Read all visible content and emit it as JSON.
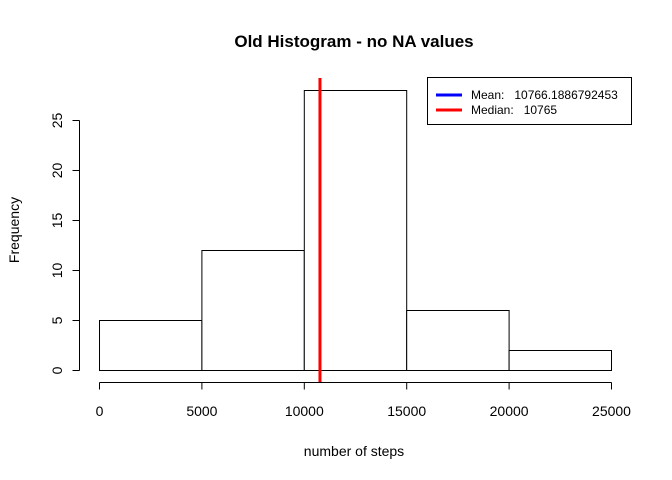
{
  "chart_data": {
    "type": "bar",
    "subtype": "histogram",
    "title": "Old Histogram - no NA values",
    "xlabel": "number of steps",
    "ylabel": "Frequency",
    "bins": [
      {
        "from": 0,
        "to": 5000,
        "count": 5
      },
      {
        "from": 5000,
        "to": 10000,
        "count": 12
      },
      {
        "from": 10000,
        "to": 15000,
        "count": 28
      },
      {
        "from": 15000,
        "to": 20000,
        "count": 6
      },
      {
        "from": 20000,
        "to": 25000,
        "count": 2
      }
    ],
    "xlim": [
      0,
      25000
    ],
    "ylim": [
      0,
      28
    ],
    "x_ticks": [
      0,
      5000,
      10000,
      15000,
      20000,
      25000
    ],
    "y_ticks": [
      0,
      5,
      10,
      15,
      20,
      25
    ],
    "bar_fill": "#ffffff",
    "bar_stroke": "#000000",
    "grid": false,
    "reference_lines": [
      {
        "name": "Mean",
        "value": 10766.1886792453,
        "color": "#0000ff",
        "show_line": false
      },
      {
        "name": "Median",
        "value": 10765,
        "color": "#ff0000",
        "show_line": true
      }
    ],
    "legend": {
      "position": "top-right",
      "entries": [
        {
          "label": "Mean:   10766.1886792453",
          "color": "#0000ff"
        },
        {
          "label": "Median:   10765",
          "color": "#ff0000"
        }
      ]
    }
  }
}
